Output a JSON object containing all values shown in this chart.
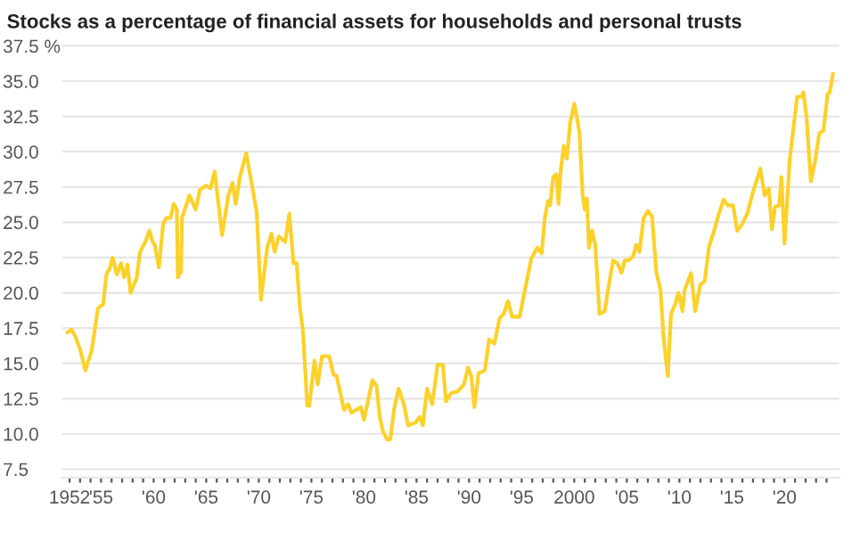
{
  "chart_data": {
    "type": "line",
    "title": "Stocks as a percentage of financial assets for households and personal trusts",
    "series": [
      {
        "color": "#fcd12a",
        "x": [
          1951.8,
          1952.2,
          1952.6,
          1953.0,
          1953.5,
          1954.1,
          1954.7,
          1955.2,
          1955.5,
          1955.8,
          1956.1,
          1956.5,
          1956.9,
          1957.2,
          1957.5,
          1957.8,
          1958.4,
          1958.7,
          1959.2,
          1959.6,
          1959.9,
          1960.1,
          1960.5,
          1960.9,
          1961.2,
          1961.6,
          1961.9,
          1962.2,
          1962.3,
          1962.6,
          1962.7,
          1963.4,
          1964.0,
          1964.4,
          1965.0,
          1965.4,
          1965.8,
          1966.1,
          1966.5,
          1967.1,
          1967.5,
          1967.8,
          1968.2,
          1968.8,
          1969.4,
          1969.8,
          1970.2,
          1970.8,
          1971.2,
          1971.5,
          1971.9,
          1972.5,
          1972.9,
          1973.3,
          1973.6,
          1973.9,
          1974.2,
          1974.6,
          1974.8,
          1975.3,
          1975.6,
          1976.0,
          1976.7,
          1977.1,
          1977.4,
          1978.1,
          1978.5,
          1978.8,
          1979.7,
          1980.0,
          1980.8,
          1981.2,
          1981.5,
          1981.8,
          1982.2,
          1982.5,
          1982.9,
          1983.3,
          1983.8,
          1984.2,
          1984.9,
          1985.3,
          1985.6,
          1986.0,
          1986.5,
          1987.0,
          1987.5,
          1987.8,
          1988.3,
          1988.9,
          1989.5,
          1989.9,
          1990.2,
          1990.5,
          1990.9,
          1991.5,
          1991.9,
          1992.4,
          1992.9,
          1993.3,
          1993.7,
          1994.1,
          1994.8,
          1995.5,
          1995.9,
          1996.5,
          1996.9,
          1997.2,
          1997.5,
          1997.7,
          1998.0,
          1998.3,
          1998.5,
          1998.7,
          1999.0,
          1999.3,
          1999.6,
          2000.0,
          2000.3,
          2000.5,
          2000.8,
          2001.0,
          2001.2,
          2001.4,
          2001.7,
          2002.0,
          2002.4,
          2002.9,
          2003.3,
          2003.7,
          2004.1,
          2004.5,
          2004.8,
          2005.2,
          2005.6,
          2005.9,
          2006.2,
          2006.6,
          2007.0,
          2007.4,
          2007.8,
          2008.2,
          2008.5,
          2008.9,
          2009.2,
          2009.6,
          2009.9,
          2010.3,
          2010.5,
          2011.1,
          2011.5,
          2012.0,
          2012.4,
          2012.8,
          2013.3,
          2013.8,
          2014.2,
          2014.6,
          2015.1,
          2015.5,
          2016.0,
          2016.5,
          2016.9,
          2017.7,
          2018.1,
          2018.5,
          2018.8,
          2019.1,
          2019.5,
          2019.7,
          2020.0,
          2020.5,
          2020.9,
          2021.2,
          2021.6,
          2021.8,
          2022.1,
          2022.5,
          2022.9,
          2023.3,
          2023.7,
          2024.1,
          2024.3,
          2024.6
        ],
        "values": [
          17.2,
          17.4,
          16.8,
          16.0,
          14.5,
          15.9,
          18.9,
          19.2,
          21.3,
          21.7,
          22.5,
          21.3,
          22.1,
          21.1,
          22.0,
          20.0,
          21.1,
          22.9,
          23.6,
          24.4,
          23.6,
          23.4,
          21.8,
          24.9,
          25.3,
          25.3,
          26.3,
          25.9,
          21.1,
          21.5,
          25.3,
          26.9,
          25.9,
          27.3,
          27.6,
          27.4,
          28.6,
          26.7,
          24.1,
          26.9,
          27.8,
          26.3,
          28.2,
          29.9,
          27.4,
          25.7,
          19.5,
          23.2,
          24.2,
          22.9,
          24.0,
          23.6,
          25.6,
          22.1,
          22.1,
          19.0,
          17.3,
          12.0,
          12.0,
          15.2,
          13.5,
          15.5,
          15.5,
          14.2,
          14.1,
          11.7,
          12.1,
          11.5,
          11.9,
          11.0,
          13.8,
          13.4,
          11.2,
          10.2,
          9.6,
          9.6,
          11.9,
          13.2,
          12.1,
          10.6,
          10.8,
          11.2,
          10.6,
          13.2,
          12.1,
          14.9,
          14.9,
          12.3,
          12.9,
          13.0,
          13.5,
          14.7,
          14.1,
          11.9,
          14.3,
          14.5,
          16.7,
          16.4,
          18.2,
          18.5,
          19.4,
          18.3,
          18.3,
          20.9,
          22.4,
          23.2,
          22.8,
          25.3,
          26.5,
          26.2,
          28.2,
          28.4,
          26.3,
          28.6,
          30.4,
          29.5,
          32.0,
          33.4,
          32.2,
          31.3,
          26.9,
          25.9,
          26.7,
          23.2,
          24.4,
          23.4,
          18.5,
          18.7,
          20.6,
          22.3,
          22.1,
          21.4,
          22.3,
          22.3,
          22.6,
          23.4,
          22.9,
          25.3,
          25.8,
          25.4,
          21.5,
          20.2,
          16.8,
          14.1,
          18.5,
          19.2,
          20.0,
          18.7,
          20.2,
          21.4,
          18.7,
          20.6,
          20.8,
          23.2,
          24.4,
          25.7,
          26.6,
          26.2,
          26.2,
          24.4,
          24.9,
          25.7,
          26.9,
          28.8,
          26.9,
          27.4,
          24.5,
          26.1,
          26.2,
          28.2,
          23.5,
          29.5,
          32.0,
          33.9,
          33.9,
          34.2,
          32.4,
          27.9,
          29.3,
          31.3,
          31.5,
          34.1,
          34.2,
          35.5
        ]
      }
    ],
    "xlim": [
      1951.3,
      2025.2
    ],
    "ylim": [
      6.9,
      37.6
    ],
    "xticks": [
      1952,
      {
        "value": 1953,
        "label": null
      },
      {
        "value": 1954,
        "label": null
      },
      {
        "value": 1955,
        "label": "'55"
      },
      {
        "value": 1956,
        "label": null
      },
      {
        "value": 1957,
        "label": null
      },
      {
        "value": 1958,
        "label": null
      },
      {
        "value": 1959,
        "label": null
      },
      {
        "value": 1960,
        "label": "'60"
      },
      {
        "value": 1961,
        "label": null
      },
      {
        "value": 1962,
        "label": null
      },
      {
        "value": 1963,
        "label": null
      },
      {
        "value": 1964,
        "label": null
      },
      {
        "value": 1965,
        "label": "'65"
      },
      {
        "value": 1966,
        "label": null
      },
      {
        "value": 1967,
        "label": null
      },
      {
        "value": 1968,
        "label": null
      },
      {
        "value": 1969,
        "label": null
      },
      {
        "value": 1970,
        "label": "'70"
      },
      {
        "value": 1971,
        "label": null
      },
      {
        "value": 1972,
        "label": null
      },
      {
        "value": 1973,
        "label": null
      },
      {
        "value": 1974,
        "label": null
      },
      {
        "value": 1975,
        "label": "'75"
      },
      {
        "value": 1976,
        "label": null
      },
      {
        "value": 1977,
        "label": null
      },
      {
        "value": 1978,
        "label": null
      },
      {
        "value": 1979,
        "label": null
      },
      {
        "value": 1980,
        "label": "'80"
      },
      {
        "value": 1981,
        "label": null
      },
      {
        "value": 1982,
        "label": null
      },
      {
        "value": 1983,
        "label": null
      },
      {
        "value": 1984,
        "label": null
      },
      {
        "value": 1985,
        "label": "'85"
      },
      {
        "value": 1986,
        "label": null
      },
      {
        "value": 1987,
        "label": null
      },
      {
        "value": 1988,
        "label": null
      },
      {
        "value": 1989,
        "label": null
      },
      {
        "value": 1990,
        "label": "'90"
      },
      {
        "value": 1991,
        "label": null
      },
      {
        "value": 1992,
        "label": null
      },
      {
        "value": 1993,
        "label": null
      },
      {
        "value": 1994,
        "label": null
      },
      {
        "value": 1995,
        "label": "'95"
      },
      {
        "value": 1996,
        "label": null
      },
      {
        "value": 1997,
        "label": null
      },
      {
        "value": 1998,
        "label": null
      },
      {
        "value": 1999,
        "label": null
      },
      {
        "value": 2000,
        "label": "2000"
      },
      {
        "value": 2001,
        "label": null
      },
      {
        "value": 2002,
        "label": null
      },
      {
        "value": 2003,
        "label": null
      },
      {
        "value": 2004,
        "label": null
      },
      {
        "value": 2005,
        "label": "'05"
      },
      {
        "value": 2006,
        "label": null
      },
      {
        "value": 2007,
        "label": null
      },
      {
        "value": 2008,
        "label": null
      },
      {
        "value": 2009,
        "label": null
      },
      {
        "value": 2010,
        "label": "'10"
      },
      {
        "value": 2011,
        "label": null
      },
      {
        "value": 2012,
        "label": null
      },
      {
        "value": 2013,
        "label": null
      },
      {
        "value": 2014,
        "label": null
      },
      {
        "value": 2015,
        "label": "'15"
      },
      {
        "value": 2016,
        "label": null
      },
      {
        "value": 2017,
        "label": null
      },
      {
        "value": 2018,
        "label": null
      },
      {
        "value": 2019,
        "label": null
      },
      {
        "value": 2020,
        "label": "'20"
      },
      {
        "value": 2021,
        "label": null
      },
      {
        "value": 2022,
        "label": null
      },
      {
        "value": 2023,
        "label": null
      },
      {
        "value": 2024,
        "label": null
      }
    ],
    "yticks": [
      7.5,
      {
        "value": 10,
        "label": "10.0"
      },
      12.5,
      {
        "value": 15,
        "label": "15.0"
      },
      17.5,
      {
        "value": 20,
        "label": "20.0"
      },
      22.5,
      {
        "value": 25,
        "label": "25.0"
      },
      27.5,
      {
        "value": 30,
        "label": "30.0"
      },
      32.5,
      {
        "value": 35,
        "label": "35.0"
      },
      {
        "value": 37.5,
        "label": "37.5 %"
      }
    ],
    "grid": "y",
    "legend": false,
    "marker": "none",
    "line_style": "solid"
  }
}
